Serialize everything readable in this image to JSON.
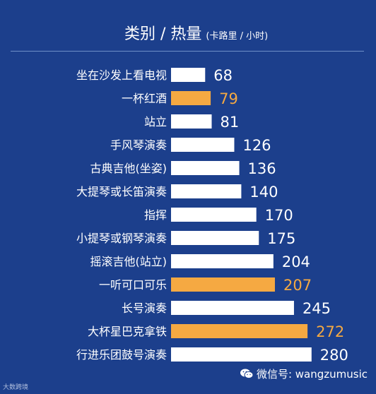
{
  "header": {
    "title": "类别 / 热量",
    "subtitle": "(卡路里 / 小时)"
  },
  "colors": {
    "background": "#1c3f8c",
    "bar_default": "#ffffff",
    "bar_highlight": "#f5a942",
    "label_default": "#ffffff",
    "label_highlight": "#f5a942"
  },
  "chart_data": {
    "type": "bar",
    "orientation": "horizontal",
    "title": "类别 / 热量",
    "subtitle": "(卡路里 / 小时)",
    "categories": [
      "坐在沙发上看电视",
      "一杯红酒",
      "站立",
      "手风琴演奏",
      "古典吉他(坐姿)",
      "大提琴或长笛演奏",
      "指挥",
      "小提琴或钢琴演奏",
      "摇滚吉他(站立)",
      "一听可口可乐",
      "长号演奏",
      "大杯星巴克拿铁",
      "行进乐团鼓号演奏"
    ],
    "values": [
      68,
      79,
      81,
      126,
      136,
      140,
      170,
      175,
      204,
      207,
      245,
      272,
      280
    ],
    "highlighted": [
      false,
      true,
      false,
      false,
      false,
      false,
      false,
      false,
      false,
      true,
      false,
      true,
      false
    ],
    "grid": false,
    "legend": "none"
  },
  "watermark": {
    "icon": "wechat-icon",
    "text": "微信号: wangzumusic"
  },
  "logo": {
    "text": "大数跨境"
  }
}
